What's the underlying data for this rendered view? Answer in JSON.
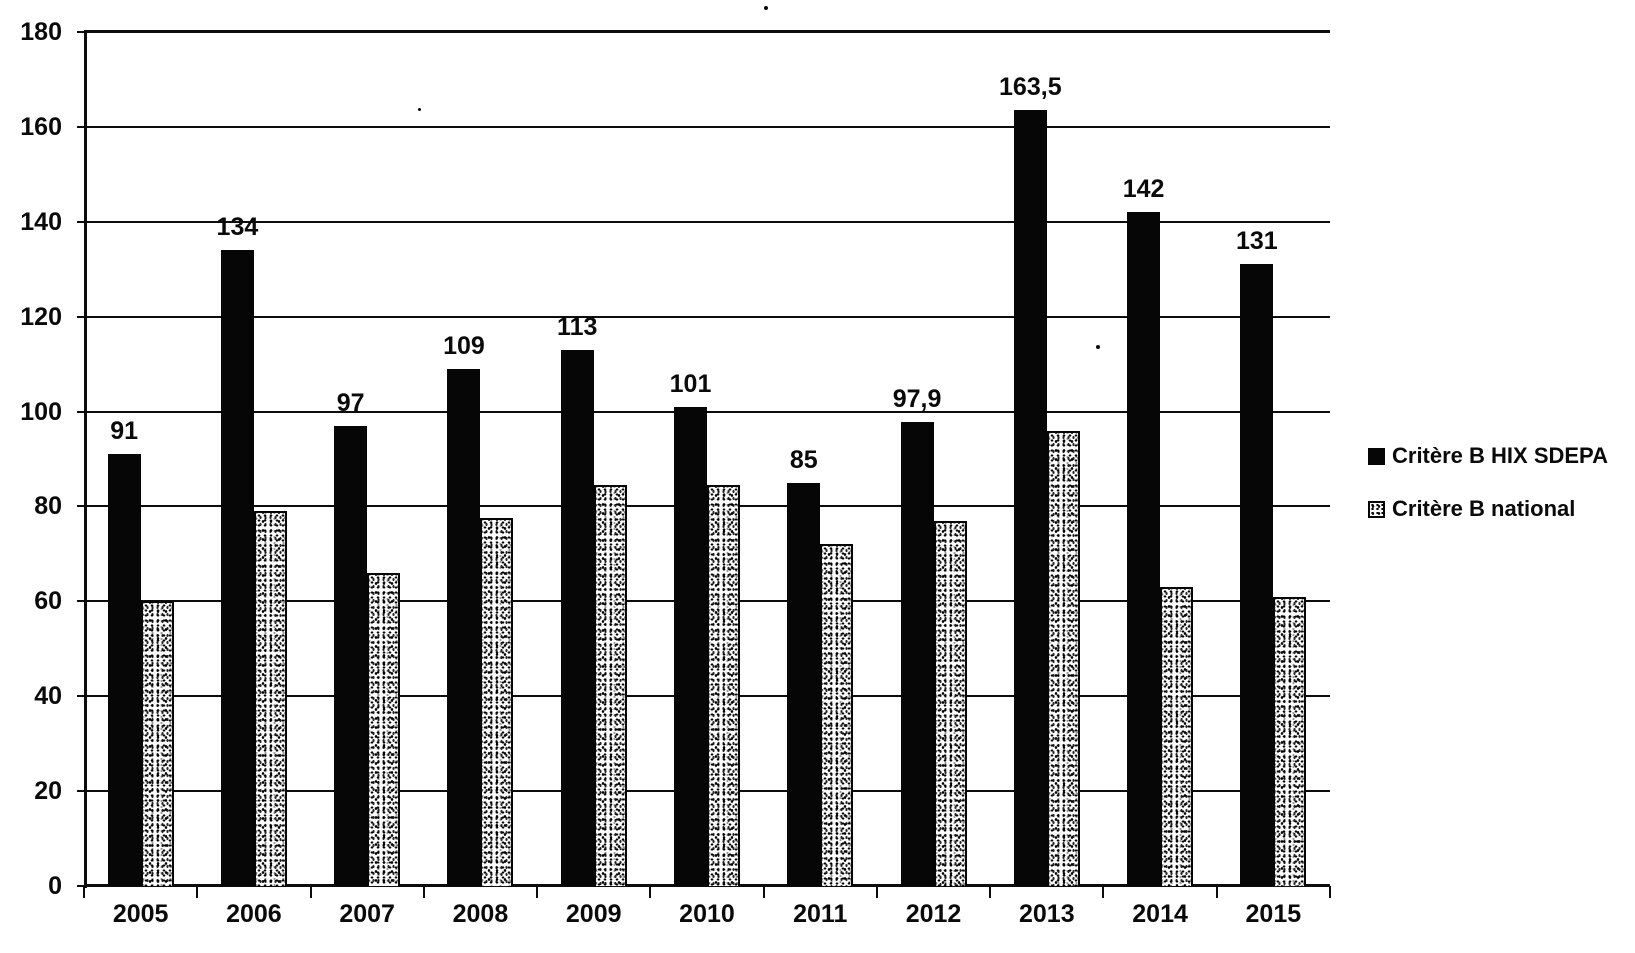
{
  "chart_data": {
    "type": "bar",
    "title": "",
    "xlabel": "",
    "ylabel": "",
    "categories": [
      "2005",
      "2006",
      "2007",
      "2008",
      "2009",
      "2010",
      "2011",
      "2012",
      "2013",
      "2014",
      "2015"
    ],
    "series": [
      {
        "name": "Critère B HIX SDEPA",
        "style": "solid-black",
        "values": [
          91,
          134,
          97,
          109,
          113,
          101,
          85,
          97.9,
          163.5,
          142,
          131
        ],
        "data_labels": [
          "91",
          "134",
          "97",
          "109",
          "113",
          "101",
          "85",
          "97,9",
          "163,5",
          "142",
          "131"
        ]
      },
      {
        "name": "Critère B national",
        "style": "speckled",
        "values": [
          60,
          79,
          66,
          77.5,
          84.5,
          84.5,
          72,
          77,
          96,
          63,
          61
        ],
        "data_labels": []
      }
    ],
    "ylim": [
      0,
      180
    ],
    "ytick_step": 20,
    "ytick_labels": [
      "0",
      "20",
      "40",
      "60",
      "80",
      "100",
      "120",
      "140",
      "160",
      "180"
    ],
    "grid": true,
    "grid_color": "#0c0c0c",
    "bar_color_solid": "#060606",
    "background": "#ffffff",
    "legend_position": "right"
  }
}
